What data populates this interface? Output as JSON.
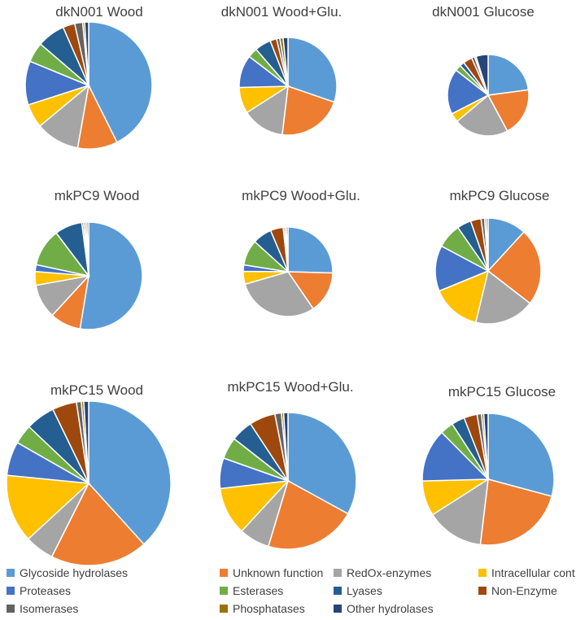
{
  "palette": {
    "Glycoside hydrolases": "#5B9BD5",
    "Unknown function": "#ED7D31",
    "RedOx-enzymes": "#A5A5A5",
    "Intracellular cont.": "#FFC000",
    "Proteases": "#4472C4",
    "Esterases": "#70AD47",
    "Lyases": "#255E91",
    "Non-Enzyme": "#9E480E",
    "Isomerases": "#636363",
    "Phosphatases": "#997300",
    "Other hydrolases": "#264478"
  },
  "chart_data": [
    {
      "type": "pie",
      "title": "dkN001 Wood",
      "categories": [
        "Glycoside hydrolases",
        "Unknown function",
        "RedOx-enzymes",
        "Intracellular cont.",
        "Proteases",
        "Esterases",
        "Lyases",
        "Non-Enzyme",
        "Isomerases",
        "Phosphatases",
        "Other hydrolases"
      ],
      "values": [
        42,
        10,
        11,
        6,
        11,
        5,
        7,
        3,
        2,
        0.5,
        1
      ]
    },
    {
      "type": "pie",
      "title": "dkN001 Wood+Glu.",
      "categories": [
        "Glycoside hydrolases",
        "Unknown function",
        "RedOx-enzymes",
        "Intracellular cont.",
        "Proteases",
        "Esterases",
        "Lyases",
        "Non-Enzyme",
        "Isomerases",
        "Phosphatases",
        "Other hydrolases"
      ],
      "values": [
        28,
        20,
        13,
        8,
        10,
        3,
        5,
        2,
        1,
        1,
        1.5
      ]
    },
    {
      "type": "pie",
      "title": "dkN001 Glucose",
      "categories": [
        "Glycoside hydrolases",
        "Unknown function",
        "RedOx-enzymes",
        "Intracellular cont.",
        "Proteases",
        "Esterases",
        "Lyases",
        "Non-Enzyme",
        "Isomerases",
        "Phosphatases",
        "Other hydrolases"
      ],
      "values": [
        19,
        16,
        18,
        3,
        15,
        2,
        1.5,
        3,
        1,
        0.5,
        4
      ]
    },
    {
      "type": "pie",
      "title": "mkPC9 Wood",
      "categories": [
        "Glycoside hydrolases",
        "Unknown function",
        "RedOx-enzymes",
        "Intracellular cont.",
        "Proteases",
        "Esterases",
        "Lyases",
        "Non-Enzyme",
        "Isomerases",
        "Phosphatases",
        "Other hydrolases"
      ],
      "values": [
        51,
        9,
        10,
        4,
        2,
        11,
        8,
        0.5,
        0.5,
        0.5,
        0.5
      ]
    },
    {
      "type": "pie",
      "title": "mkPC9 Wood+Glu.",
      "categories": [
        "Glycoside hydrolases",
        "Unknown function",
        "RedOx-enzymes",
        "Intracellular cont.",
        "Proteases",
        "Esterases",
        "Lyases",
        "Non-Enzyme",
        "Isomerases",
        "Phosphatases",
        "Other hydrolases"
      ],
      "values": [
        22,
        13,
        26,
        4,
        2,
        8,
        6,
        4,
        0.5,
        0.5,
        0.5
      ]
    },
    {
      "type": "pie",
      "title": "mkPC9 Glucose",
      "categories": [
        "Glycoside hydrolases",
        "Unknown function",
        "RedOx-enzymes",
        "Intracellular cont.",
        "Proteases",
        "Esterases",
        "Lyases",
        "Non-Enzyme",
        "Isomerases",
        "Phosphatases",
        "Other hydrolases"
      ],
      "values": [
        11,
        22,
        17,
        14,
        13,
        7,
        4,
        3,
        1,
        0.5,
        0.5
      ]
    },
    {
      "type": "pie",
      "title": "mkPC15 Wood",
      "categories": [
        "Glycoside hydrolases",
        "Unknown function",
        "RedOx-enzymes",
        "Intracellular cont.",
        "Proteases",
        "Esterases",
        "Lyases",
        "Non-Enzyme",
        "Isomerases",
        "Phosphatases",
        "Other hydrolases"
      ],
      "values": [
        40,
        20,
        6,
        14,
        7,
        4,
        6,
        5,
        1,
        0.5,
        1
      ]
    },
    {
      "type": "pie",
      "title": "mkPC15 Wood+Glu.",
      "categories": [
        "Glycoside hydrolases",
        "Unknown function",
        "RedOx-enzymes",
        "Intracellular cont.",
        "Proteases",
        "Esterases",
        "Lyases",
        "Non-Enzyme",
        "Isomerases",
        "Phosphatases",
        "Other hydrolases"
      ],
      "values": [
        32,
        21,
        7,
        11,
        7,
        5,
        5,
        6,
        1.5,
        0.5,
        1
      ]
    },
    {
      "type": "pie",
      "title": "mkPC15 Glucose",
      "categories": [
        "Glycoside hydrolases",
        "Unknown function",
        "RedOx-enzymes",
        "Intracellular cont.",
        "Proteases",
        "Esterases",
        "Lyases",
        "Non-Enzyme",
        "Isomerases",
        "Phosphatases",
        "Other hydrolases"
      ],
      "values": [
        27,
        21,
        13,
        8,
        12,
        3,
        3,
        3,
        1,
        0.5,
        1
      ]
    }
  ],
  "legend": {
    "position": "bottom",
    "entries": [
      "Glycoside hydrolases",
      "Unknown function",
      "RedOx-enzymes",
      "Intracellular cont.",
      "Proteases",
      "Esterases",
      "Lyases",
      "Non-Enzyme",
      "Isomerases",
      "Phosphatases",
      "Other hydrolases"
    ]
  }
}
